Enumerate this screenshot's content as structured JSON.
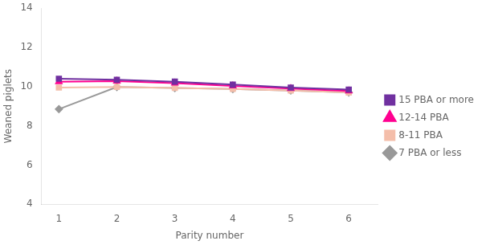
{
  "chart_data": {
    "type": "line",
    "xlabel": "Parity number",
    "ylabel": "Weaned piglets",
    "x": [
      1,
      2,
      3,
      4,
      5,
      6
    ],
    "series": [
      {
        "name": "15 PBA or more",
        "color": "#7030A0",
        "marker": "square",
        "values": [
          10.4,
          10.35,
          10.25,
          10.1,
          9.95,
          9.85
        ]
      },
      {
        "name": "12-14 PBA",
        "color": "#FF0090",
        "marker": "triangle",
        "values": [
          10.25,
          10.28,
          10.18,
          10.03,
          9.9,
          9.78
        ]
      },
      {
        "name": "8-11 PBA",
        "color": "#F4BEAA",
        "marker": "square",
        "values": [
          9.95,
          9.98,
          9.93,
          9.88,
          9.8,
          9.7
        ]
      },
      {
        "name": "7 PBA or less",
        "color": "#999999",
        "marker": "diamond",
        "values": [
          8.85,
          9.98,
          9.93,
          9.88,
          9.8,
          9.7
        ]
      }
    ],
    "xlim": [
      0.7,
      6.5
    ],
    "xticks": [
      1,
      2,
      3,
      4,
      5,
      6
    ],
    "ylim": [
      4,
      14
    ],
    "yticks": [
      4,
      6,
      8,
      10,
      12,
      14
    ],
    "grid": false,
    "legend": "right"
  }
}
